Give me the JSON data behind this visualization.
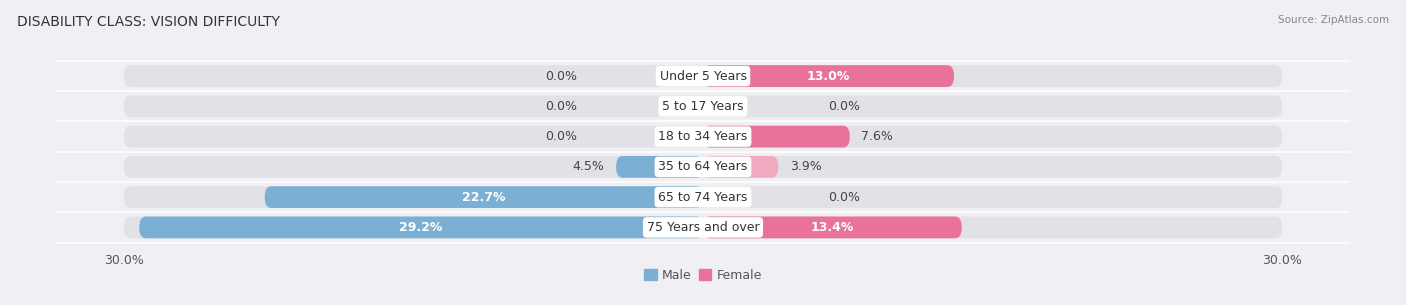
{
  "title": "DISABILITY CLASS: VISION DIFFICULTY",
  "source": "Source: ZipAtlas.com",
  "categories": [
    "Under 5 Years",
    "5 to 17 Years",
    "18 to 34 Years",
    "35 to 64 Years",
    "65 to 74 Years",
    "75 Years and over"
  ],
  "male_values": [
    0.0,
    0.0,
    0.0,
    4.5,
    22.7,
    29.2
  ],
  "female_values": [
    13.0,
    0.0,
    7.6,
    3.9,
    0.0,
    13.4
  ],
  "max_val": 30.0,
  "male_color": "#7bafd4",
  "female_color": "#e8729a",
  "male_color_light": "#aecce8",
  "female_color_light": "#f0aabf",
  "male_label": "Male",
  "female_label": "Female",
  "bar_bg_color": "#e2e2e6",
  "bar_height": 0.72,
  "title_fontsize": 10,
  "label_fontsize": 9,
  "tick_fontsize": 9,
  "category_fontsize": 9,
  "background_color": "#f0f0f4"
}
